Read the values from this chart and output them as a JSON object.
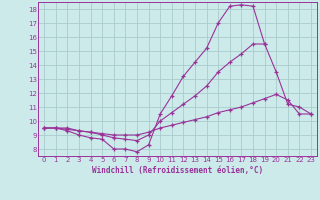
{
  "xlabel": "Windchill (Refroidissement éolien,°C)",
  "background_color": "#cceaea",
  "grid_color": "#aacccc",
  "line_color": "#993399",
  "x_values": [
    0,
    1,
    2,
    3,
    4,
    5,
    6,
    7,
    8,
    9,
    10,
    11,
    12,
    13,
    14,
    15,
    16,
    17,
    18,
    19,
    20,
    21,
    22,
    23
  ],
  "series1": [
    9.5,
    9.5,
    9.3,
    9.0,
    8.8,
    8.7,
    8.0,
    8.0,
    7.8,
    8.3,
    10.5,
    11.8,
    13.2,
    14.2,
    15.2,
    17.0,
    18.2,
    18.3,
    18.2,
    15.5,
    null,
    null,
    null,
    null
  ],
  "series2": [
    9.5,
    9.5,
    9.5,
    9.3,
    9.2,
    9.0,
    8.8,
    8.7,
    8.6,
    9.0,
    10.0,
    10.6,
    11.2,
    11.8,
    12.5,
    13.5,
    14.2,
    14.8,
    15.5,
    15.5,
    13.5,
    11.2,
    11.0,
    10.5
  ],
  "series3": [
    9.5,
    9.5,
    9.4,
    9.3,
    9.2,
    9.1,
    9.0,
    9.0,
    9.0,
    9.2,
    9.5,
    9.7,
    9.9,
    10.1,
    10.3,
    10.6,
    10.8,
    11.0,
    11.3,
    11.6,
    11.9,
    11.5,
    10.5,
    10.5
  ],
  "ylim": [
    7.5,
    18.5
  ],
  "xlim": [
    -0.5,
    23.5
  ],
  "yticks": [
    8,
    9,
    10,
    11,
    12,
    13,
    14,
    15,
    16,
    17,
    18
  ],
  "xticks": [
    0,
    1,
    2,
    3,
    4,
    5,
    6,
    7,
    8,
    9,
    10,
    11,
    12,
    13,
    14,
    15,
    16,
    17,
    18,
    19,
    20,
    21,
    22,
    23
  ]
}
